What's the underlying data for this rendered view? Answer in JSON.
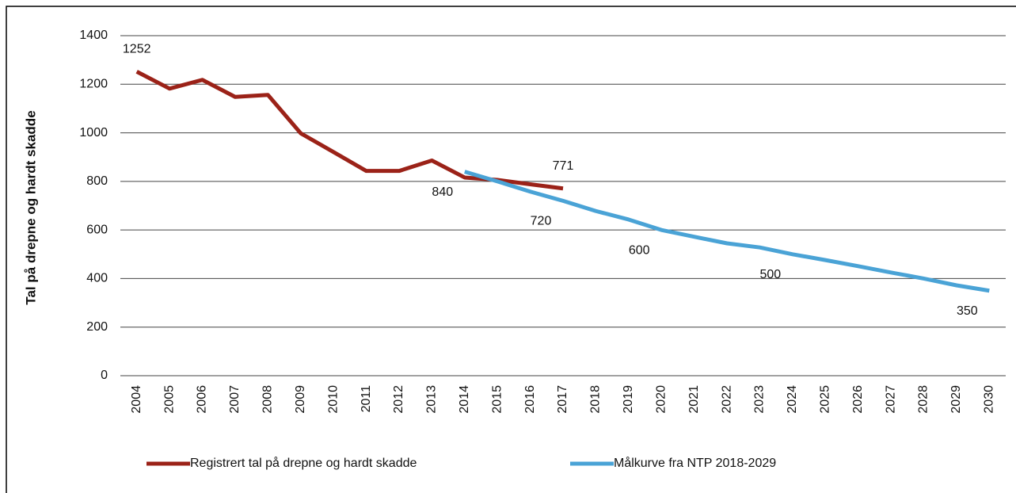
{
  "chart_data": {
    "type": "line",
    "y_label": "Tal på drepne og hardt skadde",
    "categories": [
      "2004",
      "2005",
      "2006",
      "2007",
      "2008",
      "2009",
      "2010",
      "2011",
      "2012",
      "2013",
      "2014",
      "2015",
      "2016",
      "2017",
      "2018",
      "2019",
      "2020",
      "2021",
      "2022",
      "2023",
      "2024",
      "2025",
      "2026",
      "2027",
      "2028",
      "2029",
      "2030"
    ],
    "series": [
      {
        "name": "Registrert tal på drepne og hardt skadde",
        "color": "#9b2218",
        "values": [
          1252,
          1182,
          1218,
          1148,
          1156,
          998,
          921,
          843,
          843,
          886,
          816,
          806,
          788,
          771,
          null,
          null,
          null,
          null,
          null,
          null,
          null,
          null,
          null,
          null,
          null,
          null,
          null
        ],
        "value_labels": [
          "1252",
          null,
          null,
          null,
          null,
          null,
          null,
          null,
          null,
          null,
          null,
          null,
          null,
          "771",
          null,
          null,
          null,
          null,
          null,
          null,
          null,
          null,
          null,
          null,
          null,
          null,
          null
        ]
      },
      {
        "name": "Målkurve fra NTP 2018-2029",
        "color": "#4aa3d6",
        "values": [
          null,
          null,
          null,
          null,
          null,
          null,
          null,
          null,
          null,
          null,
          840,
          800,
          758,
          720,
          678,
          643,
          600,
          572,
          545,
          528,
          500,
          476,
          451,
          425,
          400,
          372,
          350
        ],
        "value_labels": [
          null,
          null,
          null,
          null,
          null,
          null,
          null,
          null,
          null,
          null,
          "840",
          null,
          null,
          "720",
          null,
          null,
          "600",
          null,
          null,
          null,
          "500",
          null,
          null,
          null,
          null,
          null,
          "350"
        ]
      }
    ],
    "ylim": [
      0,
      1400
    ],
    "yticks": [
      0,
      200,
      400,
      600,
      800,
      1000,
      1200,
      1400
    ],
    "grid": true,
    "legend": "bottom"
  }
}
